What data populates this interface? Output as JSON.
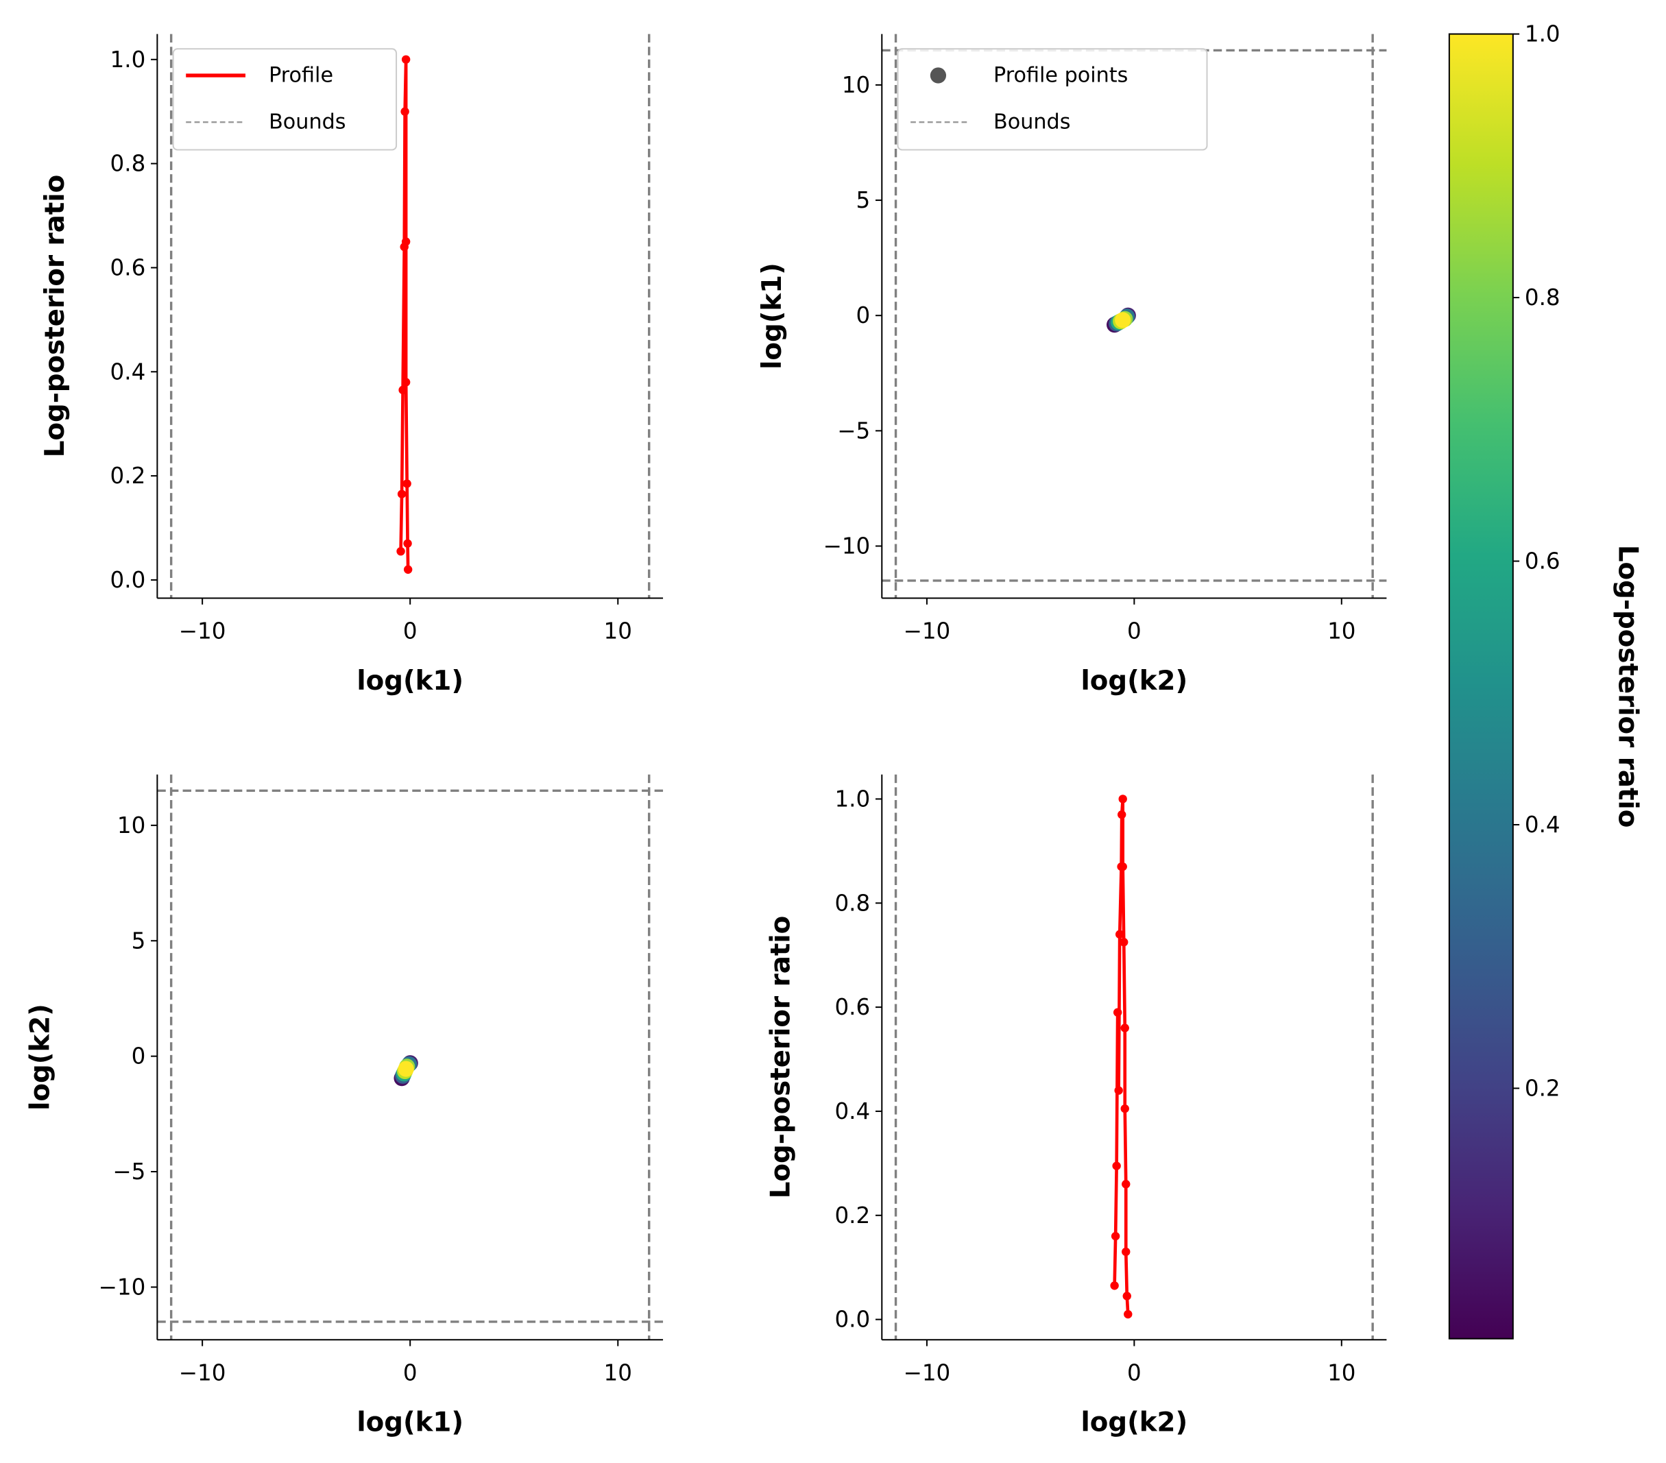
{
  "chart_data": [
    {
      "type": "line",
      "xlabel": "log(k1)",
      "ylabel": "Log-posterior ratio",
      "xlim": [
        -12.17,
        12.17
      ],
      "ylim": [
        -0.035,
        1.049
      ],
      "xticks": [
        {
          "value": -10,
          "label": "−10"
        },
        0,
        10
      ],
      "yticks": [
        {
          "value": 0,
          "label": "0.0"
        },
        0.2,
        0.4,
        0.6,
        0.8,
        {
          "value": 1,
          "label": "1.0"
        }
      ],
      "legend": "upper left",
      "series": [
        {
          "name": "Profile",
          "color": "#ff0000",
          "x": [
            -0.45,
            -0.4,
            -0.35,
            -0.28,
            -0.25,
            -0.2,
            -0.2,
            -0.2,
            -0.15,
            -0.12,
            -0.1
          ],
          "values": [
            0.055,
            0.165,
            0.365,
            0.64,
            0.9,
            1.0,
            0.65,
            0.38,
            0.185,
            0.07,
            0.02
          ]
        }
      ],
      "bounds": {
        "name": "Bounds",
        "color": "#808080",
        "x": [
          -11.5,
          11.5
        ]
      }
    },
    {
      "type": "scatter",
      "xlabel": "log(k2)",
      "ylabel": "log(k1)",
      "xlim": [
        -12.17,
        12.17
      ],
      "ylim": [
        -12.26,
        12.21
      ],
      "xticks": [
        {
          "value": -10,
          "label": "−10"
        },
        0,
        10
      ],
      "yticks": [
        {
          "value": -10,
          "label": "−10"
        },
        {
          "value": -5,
          "label": "−5"
        },
        0,
        5,
        10
      ],
      "legend": "upper left",
      "series": [
        {
          "name": "Profile points",
          "color": "#555555",
          "x": [
            -0.95,
            -0.3,
            -0.85,
            -0.35,
            -0.75,
            -0.45,
            -0.65,
            -0.55
          ],
          "values": [
            -0.4,
            0.0,
            -0.35,
            -0.05,
            -0.3,
            -0.15,
            -0.25,
            -0.2
          ],
          "c": [
            0.05,
            0.1,
            0.3,
            0.4,
            0.6,
            0.85,
            0.9,
            1.0
          ]
        }
      ],
      "bounds": {
        "name": "Bounds",
        "color": "#808080",
        "x": [
          -11.5,
          11.5
        ],
        "y": [
          -11.5,
          11.5
        ]
      }
    },
    {
      "type": "scatter",
      "xlabel": "log(k1)",
      "ylabel": "log(k2)",
      "xlim": [
        -12.17,
        12.17
      ],
      "ylim": [
        -12.28,
        12.2
      ],
      "xticks": [
        {
          "value": -10,
          "label": "−10"
        },
        0,
        10
      ],
      "yticks": [
        {
          "value": -10,
          "label": "−10"
        },
        {
          "value": -5,
          "label": "−5"
        },
        0,
        5,
        10
      ],
      "series": [
        {
          "color": "#555555",
          "x": [
            -0.4,
            0.0,
            -0.35,
            -0.05,
            -0.3,
            -0.15,
            -0.25,
            -0.2
          ],
          "values": [
            -0.95,
            -0.3,
            -0.85,
            -0.35,
            -0.75,
            -0.45,
            -0.65,
            -0.55
          ],
          "c": [
            0.05,
            0.1,
            0.3,
            0.4,
            0.6,
            0.85,
            0.9,
            1.0
          ]
        }
      ],
      "bounds": {
        "color": "#808080",
        "x": [
          -11.5,
          11.5
        ],
        "y": [
          -11.5,
          11.5
        ]
      }
    },
    {
      "type": "line",
      "xlabel": "log(k2)",
      "ylabel": "Log-posterior ratio",
      "xlim": [
        -12.17,
        12.17
      ],
      "ylim": [
        -0.039,
        1.047
      ],
      "xticks": [
        {
          "value": -10,
          "label": "−10"
        },
        0,
        10
      ],
      "yticks": [
        {
          "value": 0,
          "label": "0.0"
        },
        0.2,
        0.4,
        0.6,
        0.8,
        {
          "value": 1,
          "label": "1.0"
        }
      ],
      "series": [
        {
          "color": "#ff0000",
          "x": [
            -0.95,
            -0.9,
            -0.85,
            -0.8,
            -0.75,
            -0.7,
            -0.62,
            -0.6,
            -0.55,
            -0.55,
            -0.5,
            -0.45,
            -0.45,
            -0.4,
            -0.4,
            -0.35,
            -0.3
          ],
          "values": [
            0.065,
            0.16,
            0.295,
            0.59,
            0.44,
            0.74,
            0.87,
            0.97,
            1.0,
            0.87,
            0.725,
            0.56,
            0.405,
            0.26,
            0.13,
            0.045,
            0.01
          ]
        }
      ],
      "bounds": {
        "color": "#808080",
        "x": [
          -11.5,
          11.5
        ]
      }
    },
    {
      "type": "colorbar",
      "label": "Log-posterior ratio",
      "colormap": "viridis",
      "lim": [
        0.01,
        1
      ],
      "ticks": [
        0.2,
        0.4,
        0.6,
        0.8,
        {
          "value": 1,
          "label": "1.0"
        }
      ]
    }
  ]
}
